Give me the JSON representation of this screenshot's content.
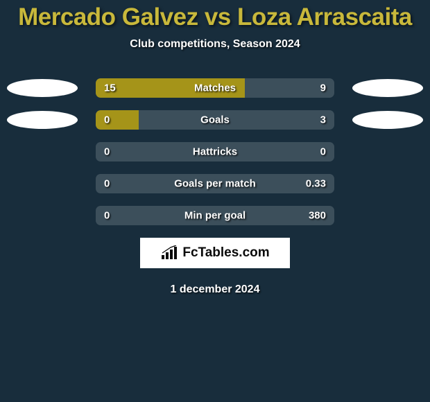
{
  "title": "Mercado Galvez vs Loza Arrascaita",
  "subtitle": "Club competitions, Season 2024",
  "logo_text": "FcTables.com",
  "date": "1 december 2024",
  "colors": {
    "page_bg": "#182d3c",
    "title_color": "#c8b83b",
    "bar_bg": "#3c4f5b",
    "bar_fill": "#a59419",
    "text": "#ffffff"
  },
  "rows": [
    {
      "metric": "Matches",
      "left_value": "15",
      "right_value": "9",
      "fill_percent": 62.5,
      "show_avatars": true
    },
    {
      "metric": "Goals",
      "left_value": "0",
      "right_value": "3",
      "fill_percent": 18,
      "show_avatars": true
    },
    {
      "metric": "Hattricks",
      "left_value": "0",
      "right_value": "0",
      "fill_percent": 0,
      "show_avatars": false
    },
    {
      "metric": "Goals per match",
      "left_value": "0",
      "right_value": "0.33",
      "fill_percent": 0,
      "show_avatars": false
    },
    {
      "metric": "Min per goal",
      "left_value": "0",
      "right_value": "380",
      "fill_percent": 0,
      "show_avatars": false
    }
  ]
}
